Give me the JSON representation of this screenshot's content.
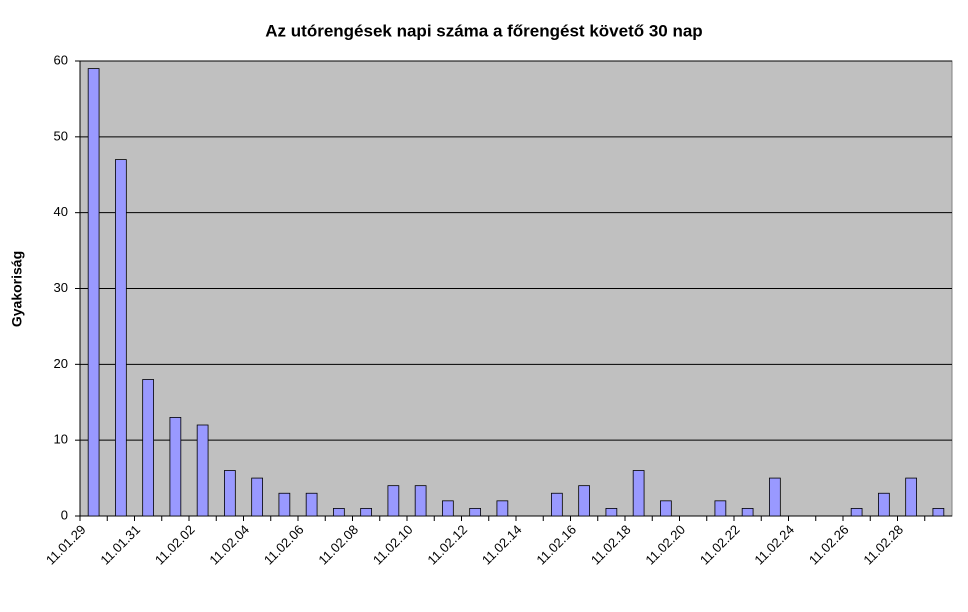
{
  "chart_data": {
    "type": "bar",
    "title": "Az utórengések napi száma a főrengést követő 30 nap",
    "y_label": "Gyakoriság",
    "categories": [
      "11.01.29",
      null,
      "11.01.31",
      null,
      "11.02.02",
      null,
      "11.02.04",
      null,
      "11.02.06",
      null,
      "11.02.08",
      null,
      "11.02.10",
      null,
      "11.02.12",
      null,
      "11.02.14",
      null,
      "11.02.16",
      null,
      "11.02.18",
      null,
      "11.02.20",
      null,
      "11.02.22",
      null,
      "11.02.24",
      null,
      "11.02.26",
      null,
      "11.02.28",
      null
    ],
    "values": [
      59,
      47,
      18,
      13,
      12,
      6,
      5,
      3,
      3,
      1,
      1,
      4,
      4,
      2,
      1,
      2,
      0,
      3,
      4,
      1,
      6,
      2,
      0,
      2,
      1,
      5,
      0,
      0,
      1,
      3,
      5,
      1
    ],
    "color": "#9999ff",
    "ylim": [
      0,
      60
    ],
    "yticks": [
      0,
      10,
      20,
      30,
      40,
      50,
      60
    ],
    "grid": true
  }
}
